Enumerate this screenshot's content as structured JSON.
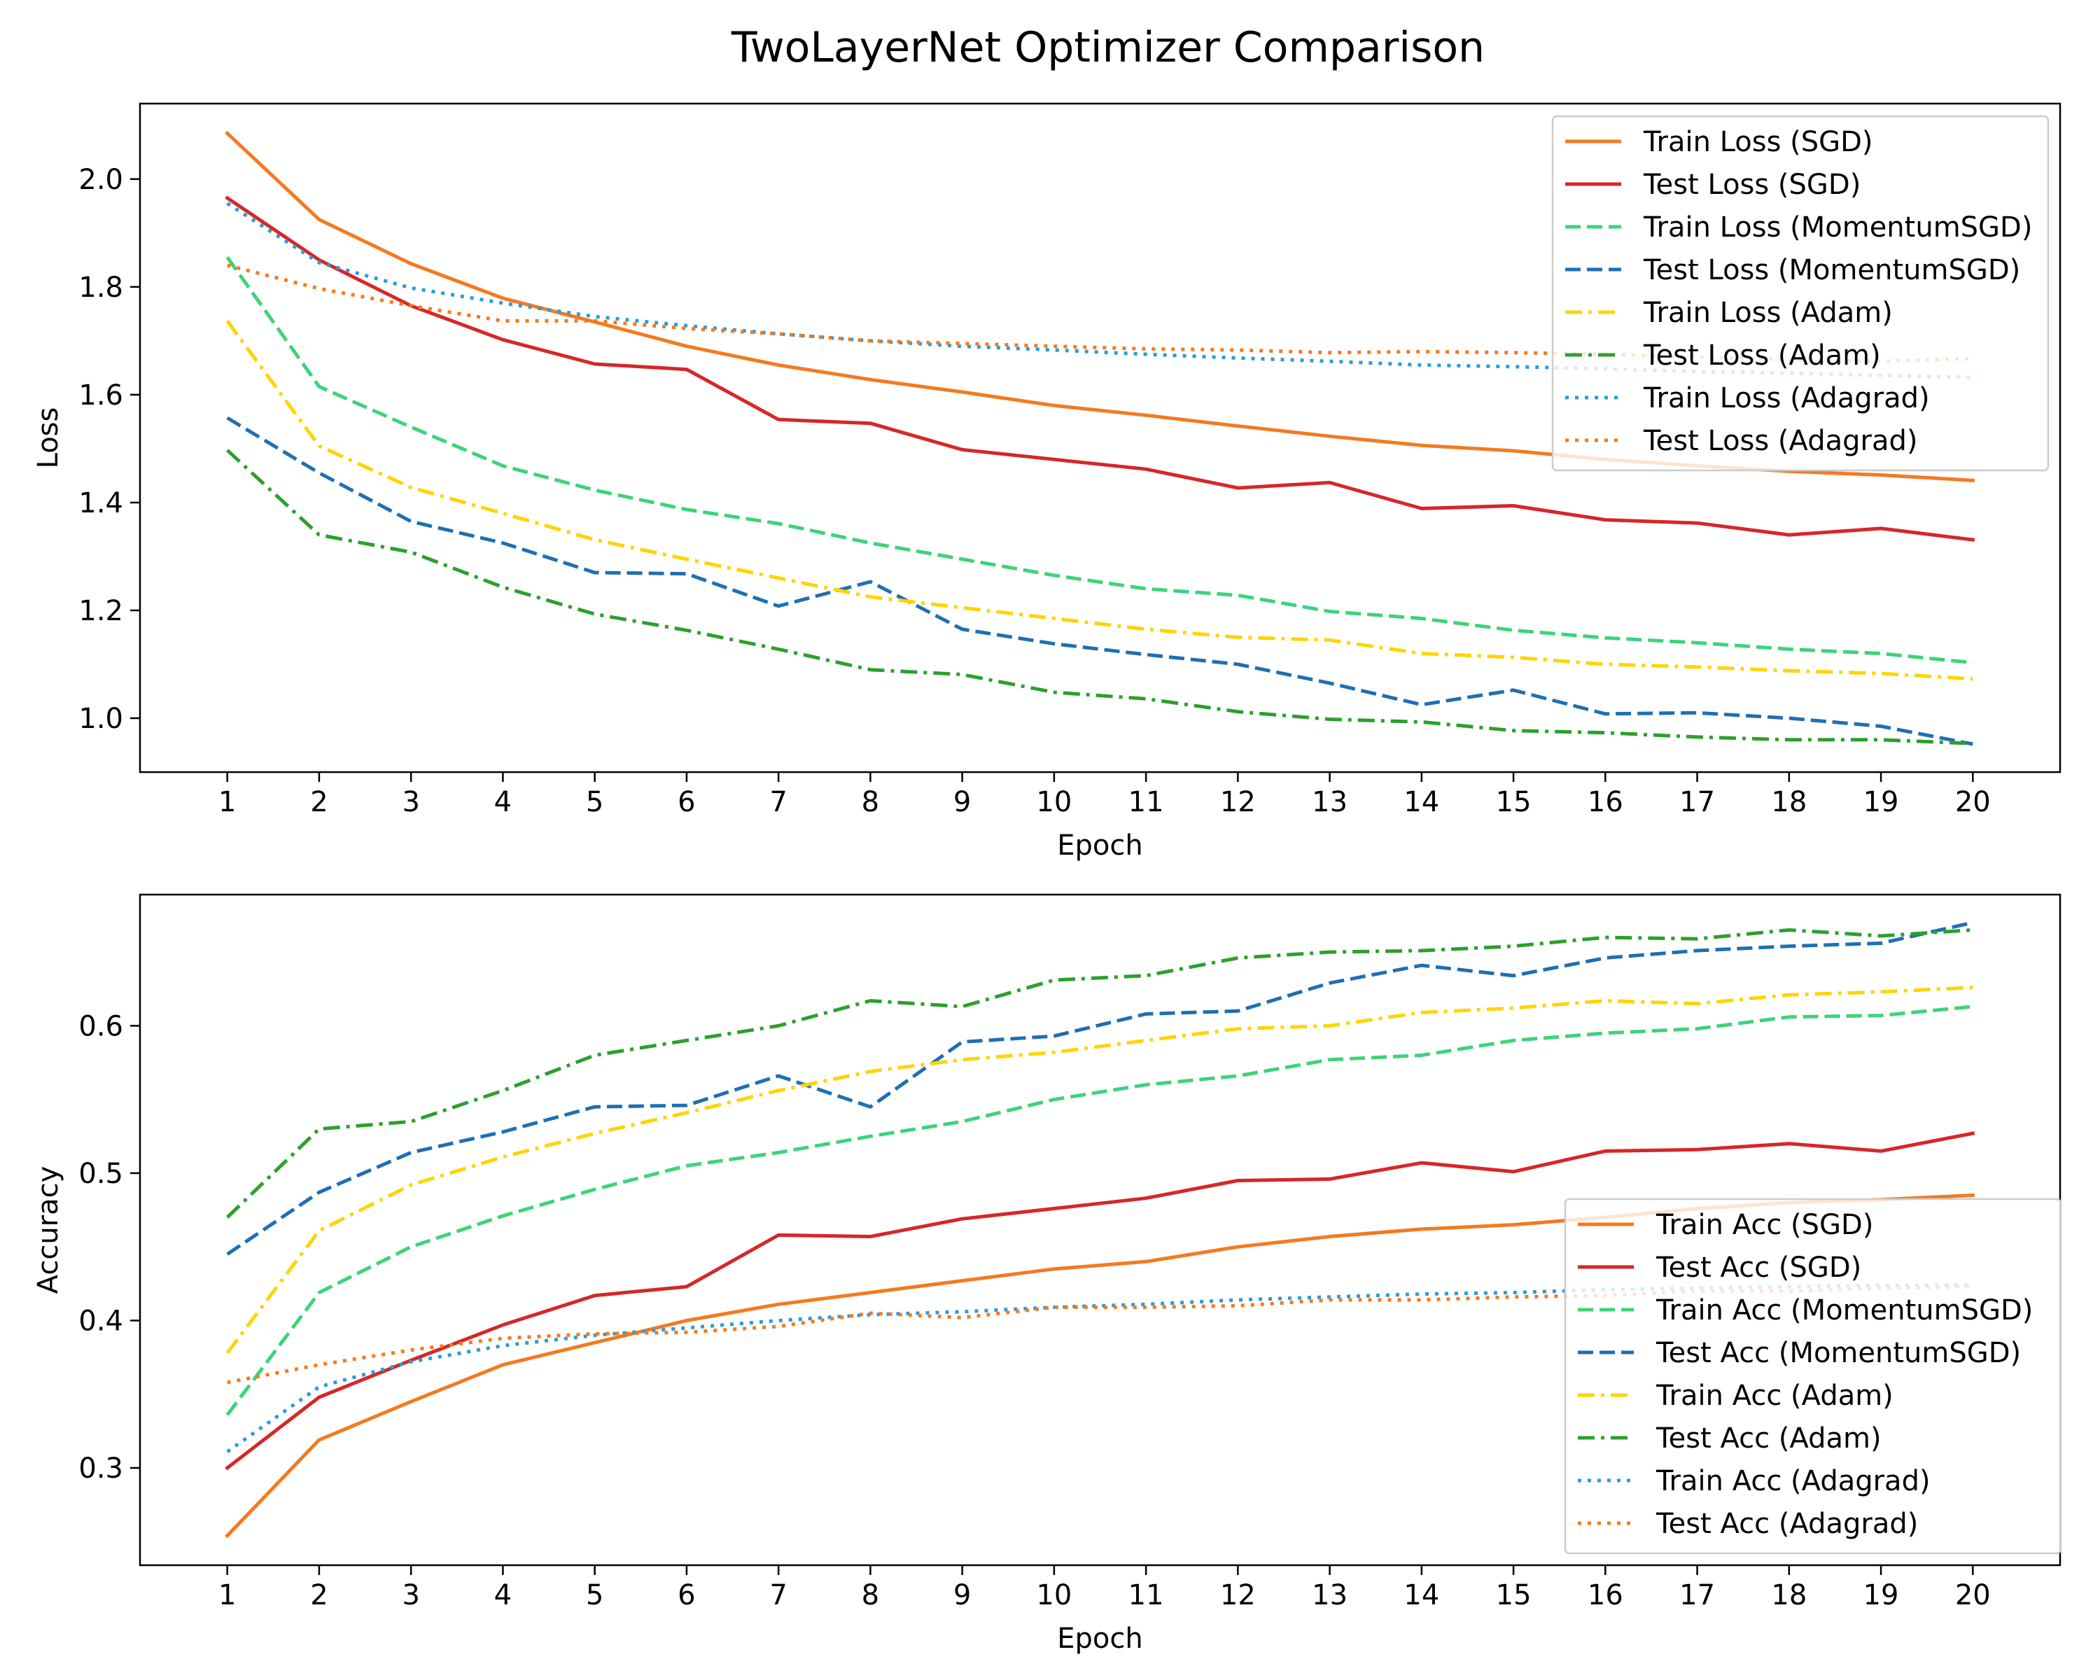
{
  "figure": {
    "title": "TwoLayerNet Optimizer Comparison"
  },
  "chart_data": [
    {
      "type": "line",
      "xlabel": "Epoch",
      "ylabel": "Loss",
      "x": [
        1,
        2,
        3,
        4,
        5,
        6,
        7,
        8,
        9,
        10,
        11,
        12,
        13,
        14,
        15,
        16,
        17,
        18,
        19,
        20
      ],
      "xlim": [
        0.05,
        20.95
      ],
      "ylim": [
        0.9,
        2.14
      ],
      "yticks": [
        1.0,
        1.2,
        1.4,
        1.6,
        1.8,
        2.0
      ],
      "ytick_decimals": 1,
      "grid": false,
      "legend_position": "top-right",
      "series": [
        {
          "name": "Train Loss (SGD)",
          "color": "#f47a20",
          "dash": "solid",
          "values": [
            2.085,
            1.925,
            1.843,
            1.779,
            1.735,
            1.69,
            1.655,
            1.628,
            1.605,
            1.58,
            1.562,
            1.542,
            1.523,
            1.506,
            1.496,
            1.48,
            1.468,
            1.458,
            1.451,
            1.441
          ]
        },
        {
          "name": "Test Loss (SGD)",
          "color": "#d62728",
          "dash": "solid",
          "values": [
            1.965,
            1.85,
            1.765,
            1.702,
            1.657,
            1.647,
            1.554,
            1.547,
            1.498,
            1.48,
            1.462,
            1.427,
            1.437,
            1.389,
            1.394,
            1.368,
            1.362,
            1.34,
            1.352,
            1.331
          ]
        },
        {
          "name": "Train Loss (MomentumSGD)",
          "color": "#3dd37a",
          "dash": "dashed",
          "values": [
            1.855,
            1.615,
            1.54,
            1.468,
            1.423,
            1.387,
            1.361,
            1.325,
            1.295,
            1.265,
            1.24,
            1.228,
            1.198,
            1.185,
            1.163,
            1.149,
            1.14,
            1.128,
            1.12,
            1.103
          ]
        },
        {
          "name": "Test Loss (MomentumSGD)",
          "color": "#1f6fb2",
          "dash": "dashed",
          "values": [
            1.557,
            1.455,
            1.365,
            1.325,
            1.27,
            1.268,
            1.208,
            1.253,
            1.165,
            1.138,
            1.118,
            1.1,
            1.065,
            1.025,
            1.052,
            1.008,
            1.01,
            1.0,
            0.985,
            0.952
          ]
        },
        {
          "name": "Train Loss (Adam)",
          "color": "#ffd400",
          "dash": "dashdot",
          "values": [
            1.737,
            1.505,
            1.428,
            1.38,
            1.331,
            1.295,
            1.26,
            1.225,
            1.205,
            1.185,
            1.165,
            1.15,
            1.145,
            1.12,
            1.113,
            1.1,
            1.095,
            1.088,
            1.083,
            1.073
          ]
        },
        {
          "name": "Test Loss (Adam)",
          "color": "#2ca02c",
          "dash": "dashdot",
          "values": [
            1.497,
            1.34,
            1.308,
            1.243,
            1.193,
            1.163,
            1.128,
            1.09,
            1.081,
            1.048,
            1.036,
            1.012,
            0.998,
            0.993,
            0.977,
            0.973,
            0.965,
            0.96,
            0.96,
            0.953
          ]
        },
        {
          "name": "Train Loss (Adagrad)",
          "color": "#2d9bd8",
          "dash": "dotted",
          "values": [
            1.955,
            1.845,
            1.798,
            1.77,
            1.745,
            1.728,
            1.713,
            1.7,
            1.69,
            1.683,
            1.675,
            1.668,
            1.662,
            1.655,
            1.652,
            1.648,
            1.643,
            1.64,
            1.636,
            1.632
          ]
        },
        {
          "name": "Test Loss (Adagrad)",
          "color": "#f47a20",
          "dash": "dotted",
          "values": [
            1.84,
            1.797,
            1.765,
            1.737,
            1.737,
            1.723,
            1.713,
            1.7,
            1.695,
            1.69,
            1.685,
            1.683,
            1.678,
            1.68,
            1.678,
            1.675,
            1.67,
            1.665,
            1.662,
            1.667
          ]
        }
      ]
    },
    {
      "type": "line",
      "xlabel": "Epoch",
      "ylabel": "Accuracy",
      "x": [
        1,
        2,
        3,
        4,
        5,
        6,
        7,
        8,
        9,
        10,
        11,
        12,
        13,
        14,
        15,
        16,
        17,
        18,
        19,
        20
      ],
      "xlim": [
        0.05,
        20.95
      ],
      "ylim": [
        0.234,
        0.689
      ],
      "yticks": [
        0.3,
        0.4,
        0.5,
        0.6
      ],
      "ytick_decimals": 1,
      "grid": false,
      "legend_position": "bottom-right",
      "series": [
        {
          "name": "Train Acc (SGD)",
          "color": "#f47a20",
          "dash": "solid",
          "values": [
            0.254,
            0.319,
            0.345,
            0.37,
            0.385,
            0.4,
            0.411,
            0.419,
            0.427,
            0.435,
            0.44,
            0.45,
            0.457,
            0.462,
            0.465,
            0.47,
            0.476,
            0.48,
            0.482,
            0.485
          ]
        },
        {
          "name": "Test Acc (SGD)",
          "color": "#d62728",
          "dash": "solid",
          "values": [
            0.3,
            0.348,
            0.373,
            0.397,
            0.417,
            0.423,
            0.458,
            0.457,
            0.469,
            0.476,
            0.483,
            0.495,
            0.496,
            0.507,
            0.501,
            0.515,
            0.516,
            0.52,
            0.515,
            0.527
          ]
        },
        {
          "name": "Train Acc (MomentumSGD)",
          "color": "#3dd37a",
          "dash": "dashed",
          "values": [
            0.336,
            0.419,
            0.45,
            0.471,
            0.489,
            0.505,
            0.514,
            0.525,
            0.535,
            0.55,
            0.56,
            0.566,
            0.577,
            0.58,
            0.59,
            0.595,
            0.598,
            0.606,
            0.607,
            0.613
          ]
        },
        {
          "name": "Test Acc (MomentumSGD)",
          "color": "#1f6fb2",
          "dash": "dashed",
          "values": [
            0.445,
            0.487,
            0.514,
            0.528,
            0.545,
            0.546,
            0.566,
            0.545,
            0.589,
            0.593,
            0.608,
            0.61,
            0.629,
            0.641,
            0.634,
            0.646,
            0.651,
            0.654,
            0.656,
            0.67
          ]
        },
        {
          "name": "Train Acc (Adam)",
          "color": "#ffd400",
          "dash": "dashdot",
          "values": [
            0.378,
            0.461,
            0.492,
            0.511,
            0.527,
            0.541,
            0.556,
            0.569,
            0.577,
            0.582,
            0.59,
            0.598,
            0.6,
            0.609,
            0.612,
            0.617,
            0.615,
            0.621,
            0.623,
            0.626
          ]
        },
        {
          "name": "Test Acc (Adam)",
          "color": "#2ca02c",
          "dash": "dashdot",
          "values": [
            0.47,
            0.53,
            0.535,
            0.556,
            0.58,
            0.59,
            0.6,
            0.617,
            0.613,
            0.631,
            0.634,
            0.646,
            0.65,
            0.651,
            0.654,
            0.66,
            0.659,
            0.665,
            0.661,
            0.665
          ]
        },
        {
          "name": "Train Acc (Adagrad)",
          "color": "#2d9bd8",
          "dash": "dotted",
          "values": [
            0.311,
            0.355,
            0.372,
            0.383,
            0.39,
            0.395,
            0.4,
            0.404,
            0.406,
            0.409,
            0.411,
            0.414,
            0.416,
            0.418,
            0.419,
            0.421,
            0.422,
            0.423,
            0.424,
            0.424
          ]
        },
        {
          "name": "Test Acc (Adagrad)",
          "color": "#f47a20",
          "dash": "dotted",
          "values": [
            0.358,
            0.37,
            0.38,
            0.388,
            0.391,
            0.392,
            0.396,
            0.405,
            0.402,
            0.409,
            0.409,
            0.41,
            0.414,
            0.414,
            0.416,
            0.417,
            0.42,
            0.42,
            0.422,
            0.423
          ]
        }
      ]
    }
  ]
}
